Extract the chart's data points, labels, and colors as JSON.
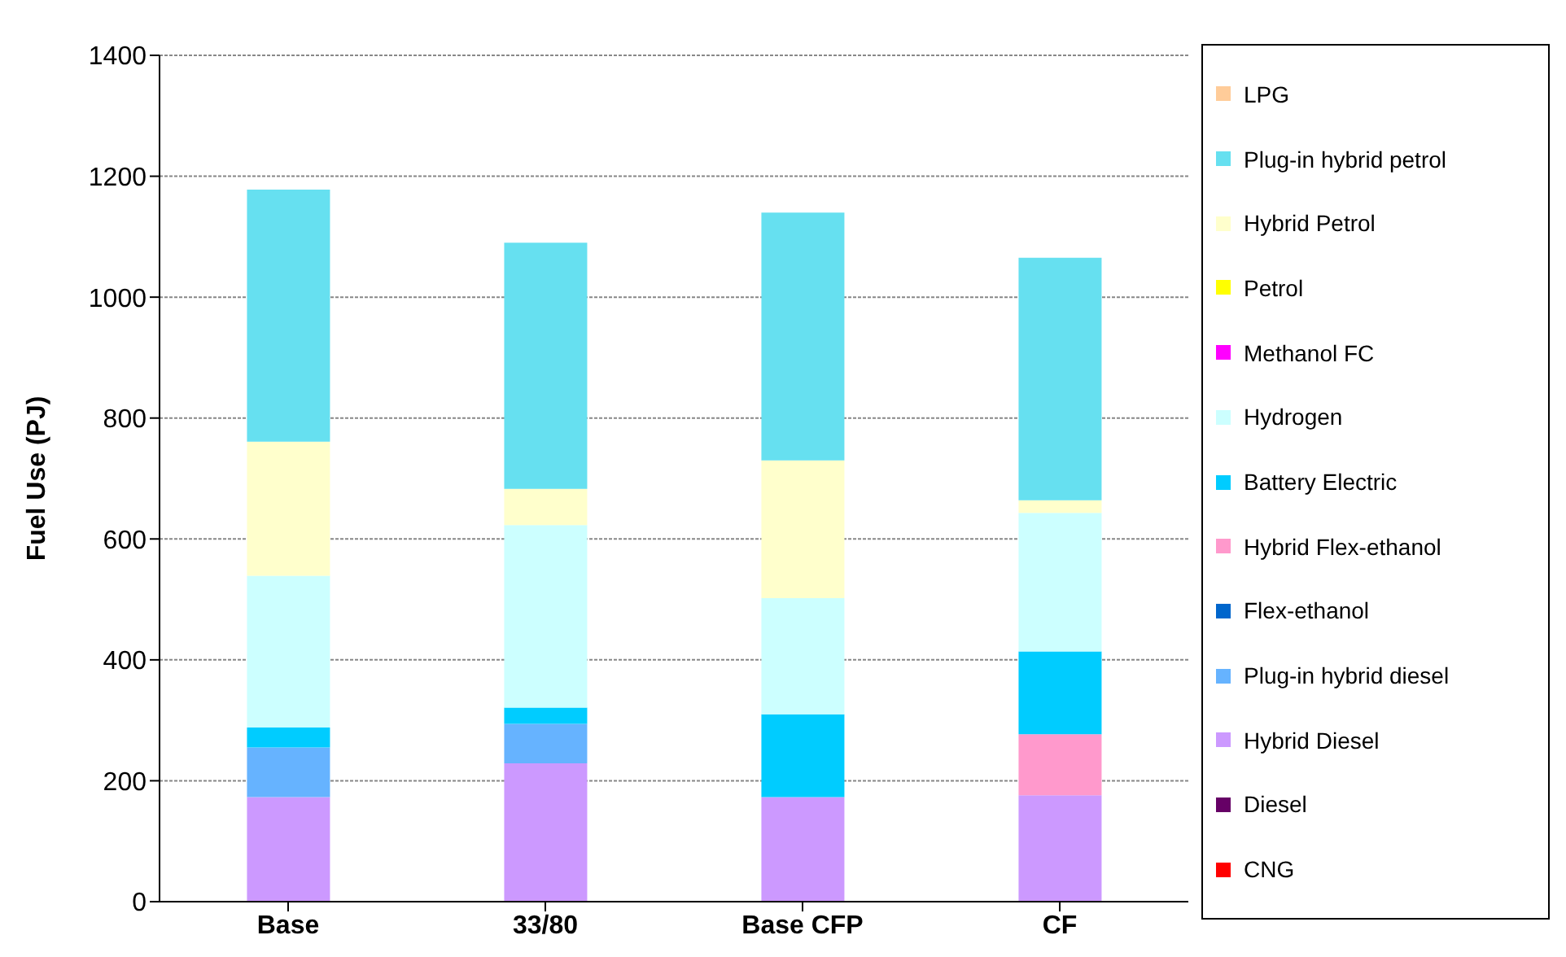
{
  "chart_data": {
    "type": "bar",
    "stacked": true,
    "ylabel": "Fuel Use (PJ)",
    "categories": [
      "Base",
      "33/80",
      "Base CFP",
      "CF"
    ],
    "ylim": [
      0,
      1400
    ],
    "yticks": [
      0,
      200,
      400,
      600,
      800,
      1000,
      1200,
      1400
    ],
    "grid": "y",
    "legend": "right",
    "series": [
      {
        "name": "CNG",
        "color": "#ff0000",
        "values": [
          0,
          0,
          0,
          0
        ]
      },
      {
        "name": "Diesel",
        "color": "#660066",
        "values": [
          0,
          0,
          0,
          0
        ]
      },
      {
        "name": "Hybrid Diesel",
        "color": "#cc99ff",
        "values": [
          173,
          229,
          173,
          176
        ]
      },
      {
        "name": "Plug-in hybrid diesel",
        "color": "#66b3ff",
        "values": [
          82,
          65,
          0,
          0
        ]
      },
      {
        "name": "Flex-ethanol",
        "color": "#0066cc",
        "values": [
          0,
          0,
          0,
          0
        ]
      },
      {
        "name": "Hybrid Flex-ethanol",
        "color": "#ff99cc",
        "values": [
          0,
          0,
          0,
          101
        ]
      },
      {
        "name": "Battery Electric",
        "color": "#00ccff",
        "values": [
          33,
          27,
          137,
          137
        ]
      },
      {
        "name": "Hydrogen",
        "color": "#ccffff",
        "values": [
          251,
          302,
          192,
          229
        ]
      },
      {
        "name": "Methanol FC",
        "color": "#ff00ff",
        "values": [
          0,
          0,
          0,
          0
        ]
      },
      {
        "name": "Petrol",
        "color": "#ffff00",
        "values": [
          0,
          0,
          0,
          0
        ]
      },
      {
        "name": "Hybrid Petrol",
        "color": "#ffffcc",
        "values": [
          222,
          60,
          228,
          21
        ]
      },
      {
        "name": "Plug-in hybrid petrol",
        "color": "#66e0f0",
        "values": [
          417,
          407,
          410,
          401
        ]
      },
      {
        "name": "LPG",
        "color": "#ffcc99",
        "values": [
          0,
          0,
          0,
          0
        ]
      }
    ]
  }
}
